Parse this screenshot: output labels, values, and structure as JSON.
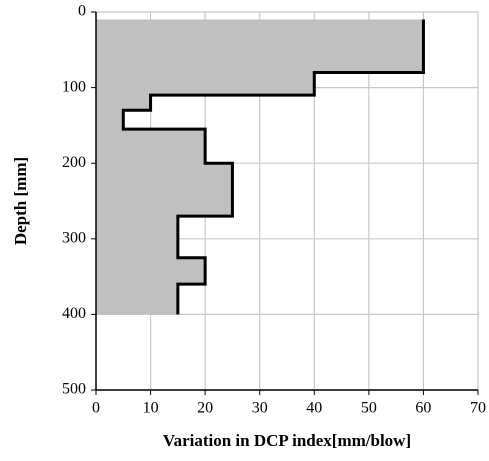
{
  "chart_data": {
    "type": "line",
    "x_label": "Variation in DCP index[mm/blow]",
    "y_label": "Depth [mm]",
    "x": [
      60,
      60,
      40,
      40,
      10,
      10,
      5,
      5,
      20,
      20,
      25,
      25,
      15,
      15,
      20,
      20,
      15,
      15
    ],
    "y": [
      10,
      80,
      80,
      110,
      110,
      130,
      130,
      155,
      155,
      200,
      200,
      270,
      270,
      325,
      325,
      360,
      360,
      400
    ],
    "color": "#000000",
    "fill_color": "#c0c0c0",
    "fill": true,
    "xlim": [
      0,
      70
    ],
    "xticks": [
      0,
      10,
      20,
      30,
      40,
      50,
      60,
      70
    ],
    "ylim": [
      0,
      500
    ],
    "yticks": [
      0,
      100,
      200,
      300,
      400,
      500
    ],
    "y_inverted": true,
    "grid": true
  }
}
